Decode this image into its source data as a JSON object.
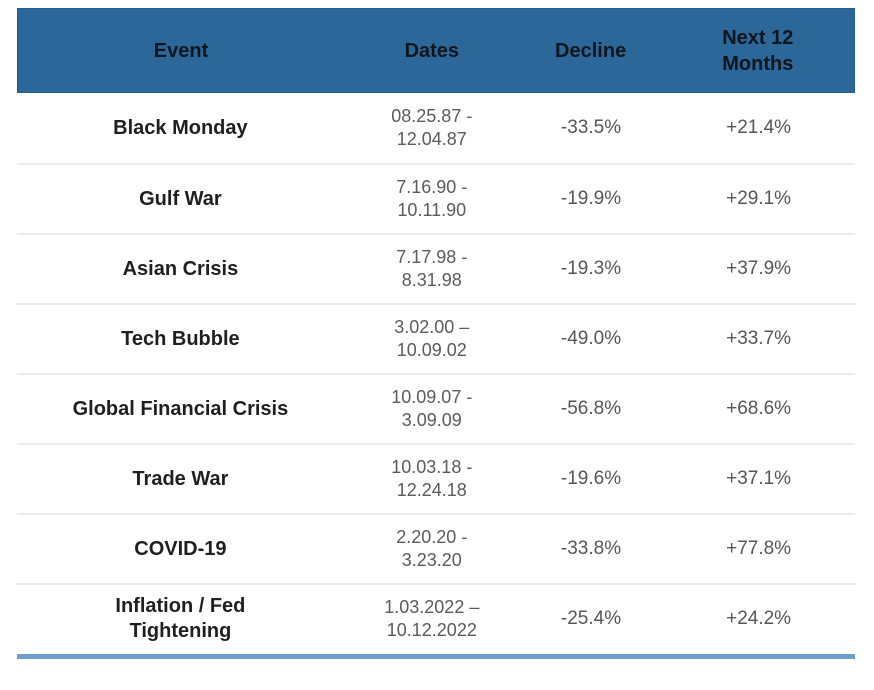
{
  "chart_data": {
    "type": "table",
    "title": "",
    "columns": [
      "Event",
      "Dates",
      "Decline",
      "Next 12 Months"
    ],
    "rows": [
      {
        "event": "Black Monday",
        "dates": "08.25.87 - 12.04.87",
        "decline": "-33.5%",
        "next_12_months": "+21.4%"
      },
      {
        "event": "Gulf War",
        "dates": "7.16.90 - 10.11.90",
        "decline": "-19.9%",
        "next_12_months": "+29.1%"
      },
      {
        "event": "Asian Crisis",
        "dates": "7.17.98 - 8.31.98",
        "decline": "-19.3%",
        "next_12_months": "+37.9%"
      },
      {
        "event": "Tech Bubble",
        "dates": "3.02.00 – 10.09.02",
        "decline": "-49.0%",
        "next_12_months": "+33.7%"
      },
      {
        "event": "Global Financial Crisis",
        "dates": "10.09.07 - 3.09.09",
        "decline": "-56.8%",
        "next_12_months": "+68.6%"
      },
      {
        "event": "Trade War",
        "dates": "10.03.18 - 12.24.18",
        "decline": "-19.6%",
        "next_12_months": "+37.1%"
      },
      {
        "event": "COVID-19",
        "dates": "2.20.20 - 3.23.20",
        "decline": "-33.8%",
        "next_12_months": "+77.8%"
      },
      {
        "event": "Inflation / Fed Tightening",
        "dates": "1.03.2022 – 10.12.2022",
        "decline": "-25.4%",
        "next_12_months": "+24.2%"
      }
    ]
  },
  "table": {
    "header": [
      "Event",
      "Dates",
      "Decline",
      "Next 12\nMonths"
    ],
    "rows": [
      {
        "event": "Black Monday",
        "dates": "08.25.87 -\n12.04.87",
        "decline": "-33.5%",
        "next12": "+21.4%"
      },
      {
        "event": "Gulf War",
        "dates": "7.16.90 -\n10.11.90",
        "decline": "-19.9%",
        "next12": "+29.1%"
      },
      {
        "event": "Asian Crisis",
        "dates": "7.17.98 -\n8.31.98",
        "decline": "-19.3%",
        "next12": "+37.9%"
      },
      {
        "event": "Tech Bubble",
        "dates": "3.02.00 –\n10.09.02",
        "decline": "-49.0%",
        "next12": "+33.7%"
      },
      {
        "event": "Global Financial Crisis",
        "dates": "10.09.07 -\n3.09.09",
        "decline": "-56.8%",
        "next12": "+68.6%"
      },
      {
        "event": "Trade War",
        "dates": "10.03.18 -\n12.24.18",
        "decline": "-19.6%",
        "next12": "+37.1%"
      },
      {
        "event": "COVID-19",
        "dates": "2.20.20 -\n3.23.20",
        "decline": "-33.8%",
        "next12": "+77.8%"
      },
      {
        "event": "Inflation / Fed\nTightening",
        "dates": "1.03.2022 –\n10.12.2022",
        "decline": "-25.4%",
        "next12": "+24.2%"
      }
    ],
    "colors": {
      "header_bg": "#2b6798",
      "header_text": "#10161c",
      "row_separator": "#ececec",
      "bottom_line": "#6ea0cb",
      "event_text": "#1f1f1f",
      "value_text": "#565656"
    }
  }
}
